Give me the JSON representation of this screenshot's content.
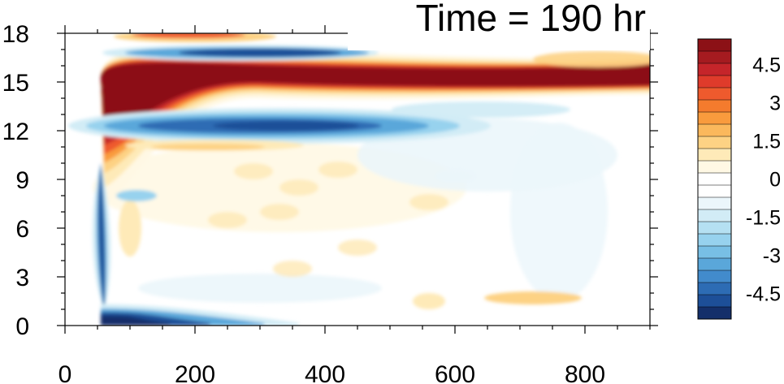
{
  "chart_data": {
    "type": "heatmap",
    "title": "Time = 190 hr",
    "xlabel": "",
    "ylabel": "",
    "xlim": [
      0,
      900
    ],
    "ylim": [
      0,
      18
    ],
    "x_ticks": [
      0,
      200,
      400,
      600,
      800
    ],
    "y_ticks": [
      0,
      3,
      6,
      9,
      12,
      15,
      18
    ],
    "colorbar": {
      "range": [
        -5.5,
        5.5
      ],
      "labels": [
        "4.5",
        "3",
        "1.5",
        "0",
        "-1.5",
        "-3",
        "-4.5"
      ],
      "label_values": [
        4.5,
        3,
        1.5,
        0,
        -1.5,
        -3,
        -4.5
      ],
      "colors": [
        "#8c1116",
        "#a51b20",
        "#c5252a",
        "#df3b2b",
        "#ee5a2d",
        "#f47b2d",
        "#f99b3d",
        "#fbb85c",
        "#fdd284",
        "#feeab8",
        "#fff8e4",
        "#ffffff",
        "#ffffff",
        "#ebf6fb",
        "#d2ecf6",
        "#b5e0f2",
        "#97d2ee",
        "#78bfe5",
        "#5aa7da",
        "#428bcc",
        "#2d6cb4",
        "#1d4f98",
        "#142f6a"
      ]
    },
    "features": [
      {
        "name": "red-band-15km",
        "x": [
          60,
          900
        ],
        "y": 15.3,
        "sign": 1
      },
      {
        "name": "blue-band-12km",
        "x": [
          100,
          560
        ],
        "y": 12.3,
        "sign": -1
      },
      {
        "name": "blue-band-17km",
        "x": [
          100,
          430
        ],
        "y": 16.7,
        "sign": -1
      },
      {
        "name": "orange-patch-18km",
        "x": [
          100,
          300
        ],
        "y": 17.8,
        "sign": 1
      },
      {
        "name": "blue-surface-band",
        "x": [
          55,
          360
        ],
        "y": 0.4,
        "sign": -1
      },
      {
        "name": "vertical-blue-column",
        "x": 55,
        "y": [
          1,
          10
        ],
        "sign": -1
      }
    ]
  }
}
